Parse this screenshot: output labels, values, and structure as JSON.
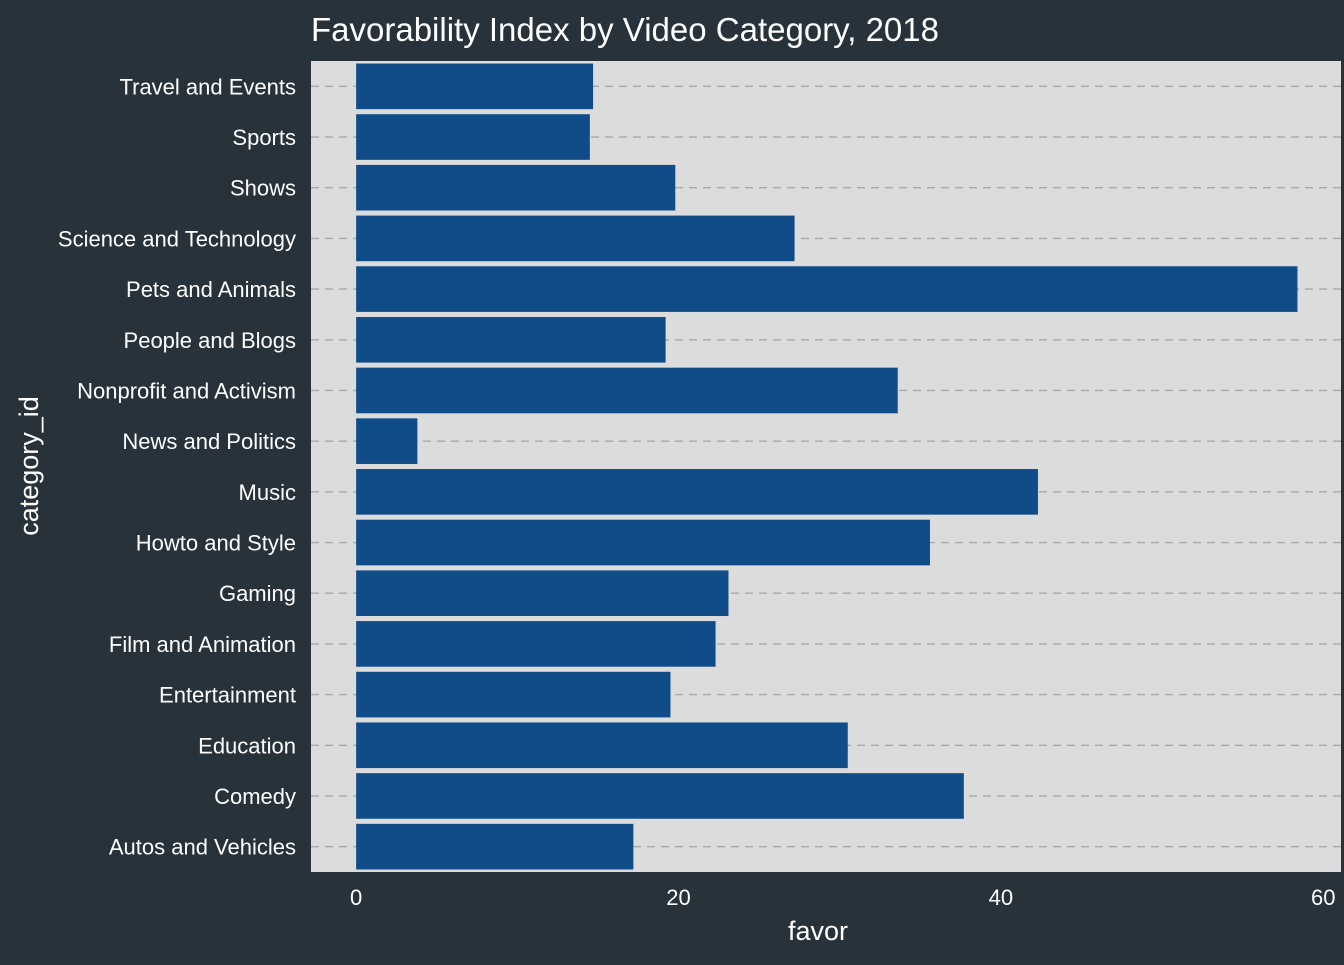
{
  "chart_data": {
    "type": "bar",
    "orientation": "horizontal",
    "title": "Favorability Index by Video Category, 2018",
    "xlabel": "favor",
    "ylabel": "category_id",
    "categories": [
      "Autos and Vehicles",
      "Comedy",
      "Education",
      "Entertainment",
      "Film and Animation",
      "Gaming",
      "Howto and Style",
      "Music",
      "News and Politics",
      "Nonprofit and Activism",
      "People and Blogs",
      "Pets and Animals",
      "Science and Technology",
      "Shows",
      "Sports",
      "Travel and Events"
    ],
    "values": [
      17.2,
      37.7,
      30.5,
      19.5,
      22.3,
      23.1,
      35.6,
      42.3,
      3.8,
      33.6,
      19.2,
      58.4,
      27.2,
      19.8,
      14.5,
      14.7
    ],
    "xlim": [
      -2.8,
      61.1
    ],
    "xticks": [
      "0",
      "20",
      "40",
      "60"
    ],
    "grid": "horizontal-dashed",
    "colors": {
      "background": "#27323a",
      "panel": "#dcdcdc",
      "bar": "#0f4c88",
      "text": "#ffffff",
      "grid": "#a9a9a9"
    }
  }
}
